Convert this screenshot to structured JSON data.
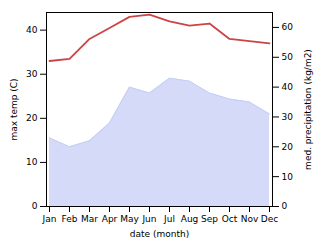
{
  "chart_data": {
    "type": "line",
    "xlabel": "date (month)",
    "ylabel": "max temp (C)",
    "y2label": "med. precipitation (kg/m2)",
    "categories": [
      "Jan",
      "Feb",
      "Mar",
      "Apr",
      "May",
      "Jun",
      "Jul",
      "Aug",
      "Sep",
      "Oct",
      "Nov",
      "Dec"
    ],
    "series": [
      {
        "type": "area",
        "axis": "y2",
        "color": "#c5cef5",
        "values": [
          23,
          20,
          22,
          28,
          40,
          38,
          43,
          42,
          38,
          36,
          35,
          31
        ]
      },
      {
        "type": "line",
        "color": "#cc4444",
        "values": [
          33,
          33.5,
          38,
          40.5,
          43,
          43.5,
          42,
          41,
          41.5,
          38,
          37.5,
          37
        ]
      }
    ],
    "ylim": [
      0,
      44
    ],
    "yticks": [
      0,
      10,
      20,
      30,
      40
    ],
    "y2lim": [
      0,
      65
    ],
    "y2ticks": [
      0,
      10,
      20,
      30,
      40,
      50,
      60
    ]
  }
}
